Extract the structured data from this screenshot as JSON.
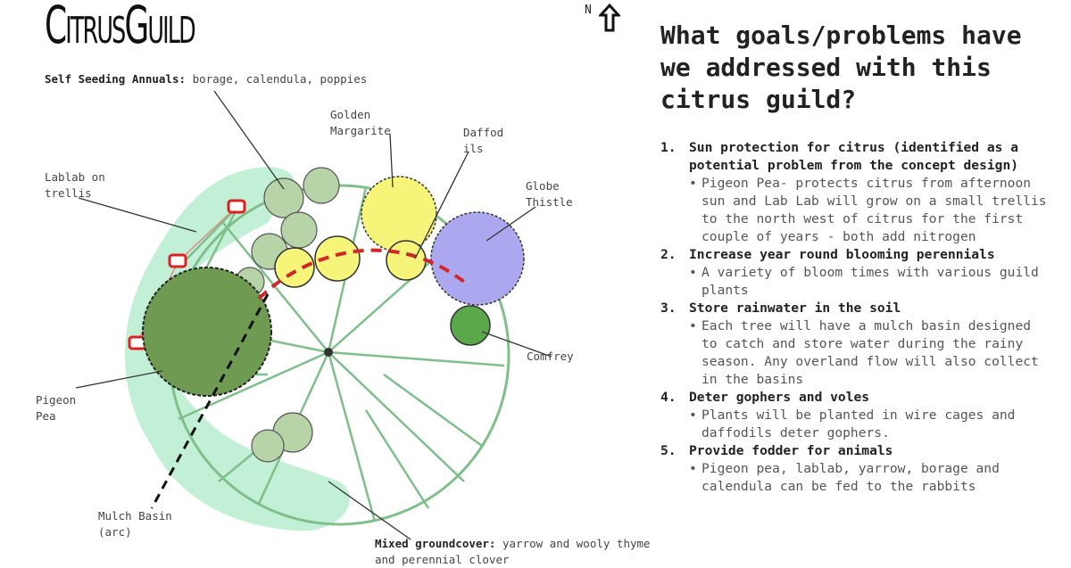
{
  "title": "CitrusGuild",
  "north": {
    "label": "N",
    "icon": "north-arrow-icon"
  },
  "labels": {
    "self_seeding_bold": "Self Seeding Annuals:",
    "self_seeding_text": " borage, calendula, poppies",
    "golden_marguerite": "Golden Margarite",
    "daffodils": "Daffod ils",
    "lablab": "Lablab on trellis",
    "globe_thistle": "Globe Thistle",
    "comfrey": "Comfrey",
    "pigeon_pea": "Pigeon Pea",
    "mulch_basin": "Mulch Basin (arc)",
    "groundcover_bold": "Mixed groundcover:",
    "groundcover_text": " yarrow and wooly thyme and perennial clover"
  },
  "colors": {
    "groundcover": "#b8ecd0",
    "spokes": "#7fbf8a",
    "yellow": "#f7f47a",
    "thistle": "#a9a6f0",
    "pigeon_pea": "#5a8a3e",
    "mulch": "#d2272a",
    "trellis": "#e02020"
  },
  "question": "What goals/problems have we addressed with this citrus guild?",
  "goals": [
    {
      "num": "1.",
      "title": "Sun protection for citrus (identified as a potential problem from the concept design)",
      "detail": "Pigeon Pea- protects citrus from afternoon sun and Lab Lab will grow on a small trellis to the north west of citrus for the first couple of years - both add nitrogen"
    },
    {
      "num": "2.",
      "title": "Increase year round blooming perennials",
      "detail": "A variety of bloom times with various guild plants"
    },
    {
      "num": "3.",
      "title": "Store rainwater in the soil",
      "detail": "Each tree will have a mulch basin designed to catch and store water during the rainy season. Any overland flow will also collect in the basins"
    },
    {
      "num": "4.",
      "title": "Deter gophers and voles",
      "detail": "Plants will be planted in wire cages and daffodils deter gophers."
    },
    {
      "num": "5.",
      "title": "Provide fodder for animals",
      "detail": "Pigeon pea, lablab, yarrow, borage and calendula can be fed to the rabbits"
    }
  ]
}
